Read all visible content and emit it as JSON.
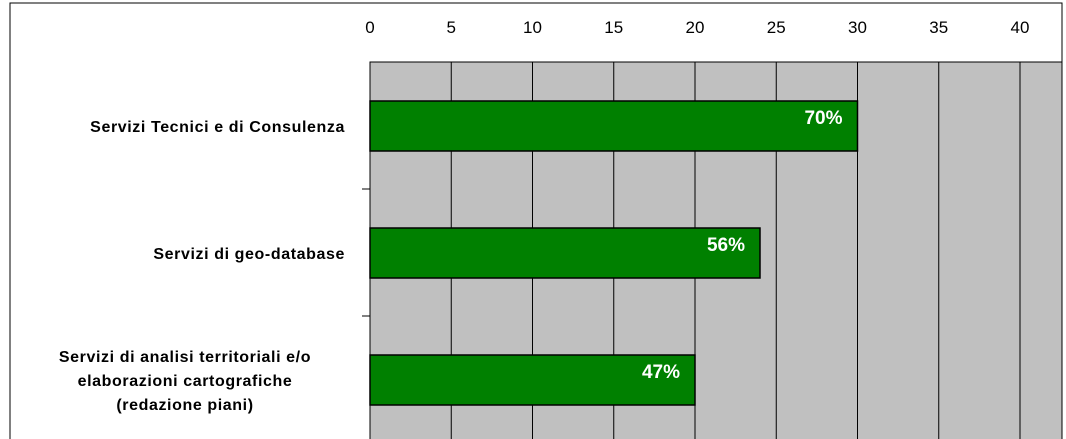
{
  "chart_data": {
    "type": "bar",
    "orientation": "horizontal",
    "categories": [
      "Servizi Tecnici e di Consulenza",
      "Servizi di geo-database",
      "Servizi di analisi territoriali e/o elaborazioni cartografiche (redazione piani)"
    ],
    "category_lines": [
      [
        "Servizi Tecnici e di Consulenza"
      ],
      [
        "Servizi di geo-database"
      ],
      [
        "Servizi di analisi territoriali e/o",
        "elaborazioni cartografiche",
        "(redazione piani)"
      ]
    ],
    "values": [
      30,
      24,
      20
    ],
    "data_labels": [
      "70%",
      "56%",
      "47%"
    ],
    "xticks": [
      "0",
      "5",
      "10",
      "15",
      "20",
      "25",
      "30",
      "35",
      "40"
    ],
    "xlim": [
      0,
      42.5
    ],
    "x_axis_position": "top",
    "grid": true,
    "legend": "none",
    "title": "",
    "xlabel": "",
    "ylabel": "",
    "colors": {
      "bar": "#008000",
      "plot_background": "#c0c0c0",
      "gridline": "#000000",
      "data_label": "#ffffff"
    }
  }
}
